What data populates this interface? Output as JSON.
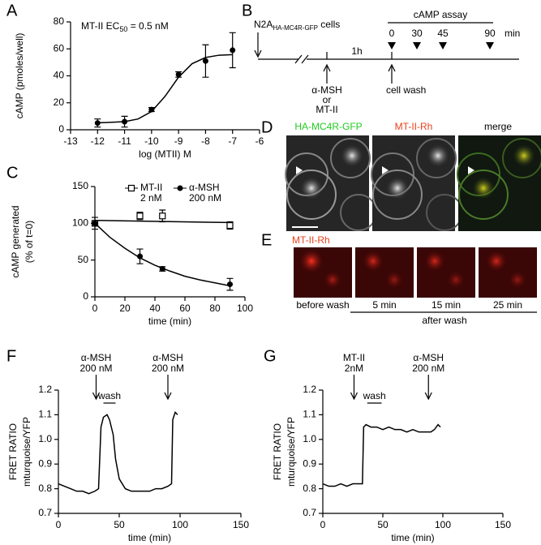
{
  "panel_labels": [
    "A",
    "B",
    "C",
    "D",
    "E",
    "F",
    "G"
  ],
  "chart_data": [
    {
      "type": "scatter",
      "xlabel": "log (MTII) M",
      "ylabel": "cAMP (pmoles/well)",
      "annotation": [
        "MT-II EC",
        "50",
        " = 0.5 nM"
      ],
      "xlim": [
        -13,
        -6
      ],
      "xticks": [
        -13,
        -12,
        -11,
        -10,
        -9,
        -8,
        -7,
        -6
      ],
      "ylim": [
        0,
        80
      ],
      "yticks": [
        0,
        20,
        40,
        60,
        80
      ],
      "series": [
        {
          "color": "#000000",
          "marker": "circle",
          "x": [
            -12,
            -11,
            -10,
            -9,
            -8,
            -7
          ],
          "values": [
            5,
            6,
            15,
            41,
            51,
            59
          ],
          "errors": [
            3,
            4,
            1.5,
            2,
            12,
            13
          ],
          "fit_x": [
            -12,
            -11,
            -10.5,
            -10,
            -9.5,
            -9.3,
            -9,
            -8.5,
            -8,
            -7.5,
            -7
          ],
          "fit_values": [
            5.1,
            6,
            8,
            13.5,
            24.8,
            30.5,
            39,
            49,
            53.6,
            55.3,
            55.7
          ]
        }
      ]
    },
    {
      "type": "scatter",
      "xlabel": "time (min)",
      "ylabel": [
        "cAMP generated",
        "(% of t=0)"
      ],
      "xlim": [
        0,
        100
      ],
      "xticks": [
        0,
        20,
        40,
        60,
        80,
        100
      ],
      "ylim": [
        0,
        150
      ],
      "yticks": [
        0,
        50,
        100,
        150
      ],
      "series": [
        {
          "name": "MT-II",
          "dose": "2 nM",
          "color": "#000000",
          "marker": "square-open",
          "x": [
            0,
            30,
            45,
            90
          ],
          "values": [
            100,
            110,
            110,
            97
          ],
          "errors": [
            3,
            5,
            8,
            5
          ],
          "fit_x": [
            0,
            90
          ],
          "fit_values": [
            104,
            101
          ]
        },
        {
          "name": "α-MSH",
          "dose": "200 nM",
          "color": "#000000",
          "marker": "circle",
          "x": [
            0,
            30,
            45,
            90
          ],
          "values": [
            100,
            55,
            38,
            17
          ],
          "errors": [
            8,
            10,
            3,
            8
          ],
          "fit_x": [
            0,
            10,
            20,
            30,
            40,
            50,
            60,
            70,
            80,
            90
          ],
          "fit_values": [
            100,
            81,
            66,
            53,
            43,
            35,
            28,
            23,
            19,
            15
          ]
        }
      ]
    },
    {
      "type": "line",
      "xlabel": "time (min)",
      "ylabel": [
        "FRET RATIO",
        "mturquoise/YFP"
      ],
      "xlim": [
        0,
        150
      ],
      "xticks": [
        0,
        50,
        100,
        150
      ],
      "ylim": [
        0.7,
        1.2
      ],
      "yticks": [
        0.7,
        0.8,
        0.9,
        {
          "value": 1,
          "label": "1.0"
        },
        1.1,
        1.2
      ],
      "events": [
        {
          "label": [
            "α-MSH",
            "200 nM"
          ],
          "x": 31
        },
        {
          "label": [
            "α-MSH",
            "200 nM"
          ],
          "x": 90
        }
      ],
      "wash": {
        "label": "wash",
        "x": [
          37,
          47
        ]
      },
      "series": [
        {
          "color": "#000000",
          "x": [
            0,
            5,
            10,
            15,
            20,
            25,
            30,
            33,
            35,
            37,
            40,
            42,
            45,
            47,
            50,
            55,
            60,
            65,
            70,
            75,
            80,
            85,
            90,
            93,
            94,
            96,
            98
          ],
          "values": [
            0.82,
            0.81,
            0.8,
            0.79,
            0.79,
            0.78,
            0.79,
            0.8,
            1.05,
            1.09,
            1.1,
            1.08,
            1.02,
            0.92,
            0.84,
            0.8,
            0.79,
            0.79,
            0.79,
            0.79,
            0.8,
            0.8,
            0.81,
            0.82,
            1.08,
            1.11,
            1.1
          ]
        }
      ]
    },
    {
      "type": "line",
      "xlabel": "time (min)",
      "ylabel": [
        "FRET RATIO",
        "mturquoise/YFP"
      ],
      "xlim": [
        0,
        150
      ],
      "xticks": [
        0,
        50,
        100,
        150
      ],
      "ylim": [
        0.7,
        1.2
      ],
      "yticks": [
        0.7,
        0.8,
        0.9,
        {
          "value": 1,
          "label": "1.0"
        },
        1.1,
        1.2
      ],
      "events": [
        {
          "label": [
            "MT-II",
            "2nM"
          ],
          "x": 26
        },
        {
          "label": [
            "α-MSH",
            "200 nM"
          ],
          "x": 88
        }
      ],
      "wash": {
        "label": "wash",
        "x": [
          37,
          49
        ]
      },
      "series": [
        {
          "color": "#000000",
          "x": [
            0,
            5,
            10,
            15,
            20,
            25,
            30,
            33,
            34,
            36,
            40,
            45,
            50,
            55,
            60,
            65,
            70,
            75,
            80,
            85,
            90,
            93,
            96,
            98
          ],
          "values": [
            0.82,
            0.81,
            0.81,
            0.82,
            0.81,
            0.82,
            0.82,
            0.82,
            1.05,
            1.06,
            1.05,
            1.05,
            1.04,
            1.05,
            1.04,
            1.04,
            1.03,
            1.04,
            1.03,
            1.03,
            1.03,
            1.04,
            1.06,
            1.05
          ]
        }
      ]
    }
  ],
  "diagram": {
    "cells": [
      "N2A",
      "HA-MC4R-GFP",
      " cells"
    ],
    "assay": "cAMP assay",
    "times": [
      0,
      30,
      45,
      90
    ],
    "unit": "min",
    "interval": "1h",
    "treatment": [
      "α-MSH",
      "or",
      "MT-II"
    ],
    "wash": "cell wash"
  },
  "micrographs": {
    "D": {
      "channels": [
        "HA-MC4R-GFP",
        "MT-II-Rh",
        "merge"
      ]
    },
    "E": {
      "title": "MT-II-Rh",
      "frames": [
        "before wash",
        "5 min",
        "15 min",
        "25 min"
      ],
      "group": "after wash"
    }
  }
}
